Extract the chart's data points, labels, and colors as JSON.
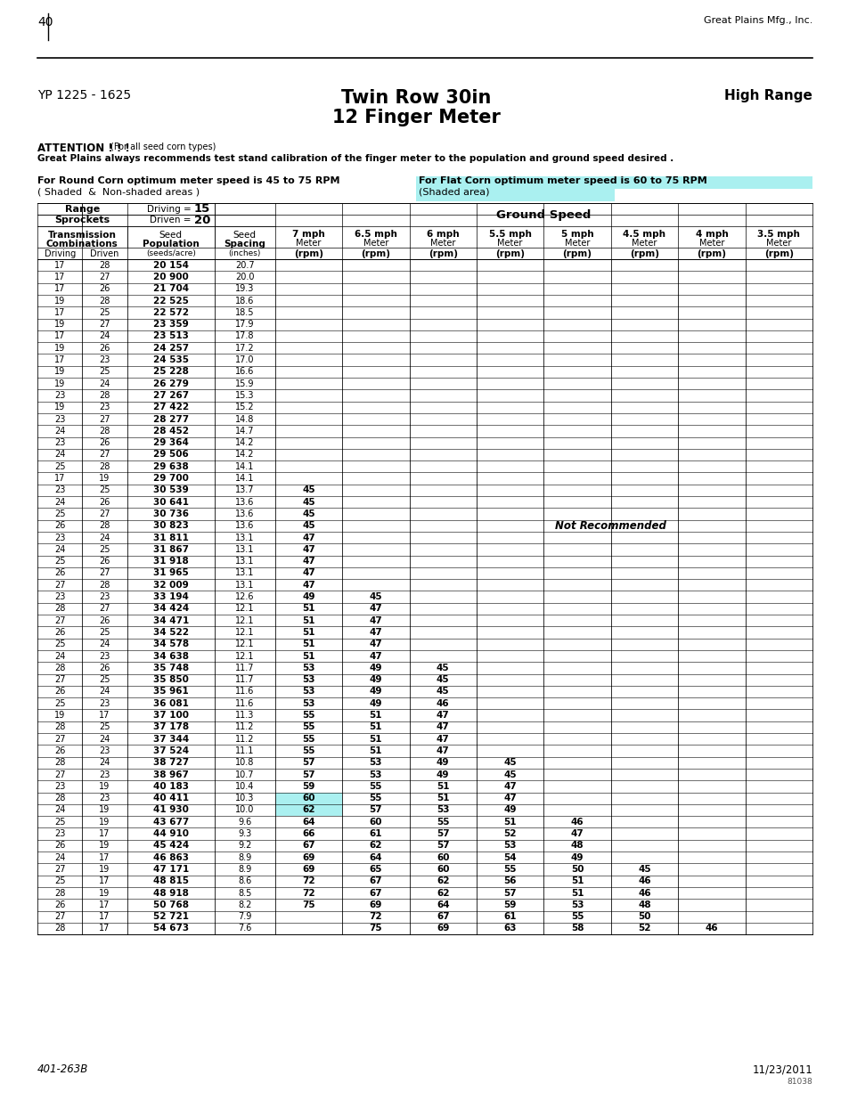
{
  "page_num": "40",
  "company": "Great Plains Mfg., Inc.",
  "model": "YP 1225 - 1625",
  "title_line1": "Twin Row 30in",
  "title_line2": "12 Finger Meter",
  "range_label": "High Range",
  "attention_bold": "ATTENTION ! ! !",
  "attention_small": "  (For all seed corn types)",
  "attention_body": "Great Plains always recommends test stand calibration of the finger meter to the population and ground speed desired .",
  "round_corn_text": "For Round Corn optimum meter speed is 45 to 75 RPM",
  "round_corn_sub": "( Shaded  &  Non-shaded areas )",
  "flat_corn_text": "For Flat Corn optimum meter speed is 60 to 75 RPM",
  "flat_corn_sub": "(Shaded area)",
  "flat_corn_bg": "#aaf0f0",
  "driving_val": "15",
  "driven_val": "20",
  "col_headers": [
    "7 mph",
    "6.5 mph",
    "6 mph",
    "5.5 mph",
    "5 mph",
    "4.5 mph",
    "4 mph",
    "3.5 mph"
  ],
  "not_recommended_text": "Not Recommended",
  "footer_left": "401-263B",
  "footer_right": "11/23/2011",
  "footer_small": "81038",
  "table_data": [
    [
      17,
      28,
      "20 154",
      "20.7",
      "",
      "",
      "",
      "",
      "",
      "",
      "",
      ""
    ],
    [
      17,
      27,
      "20 900",
      "20.0",
      "",
      "",
      "",
      "",
      "",
      "",
      "",
      ""
    ],
    [
      17,
      26,
      "21 704",
      "19.3",
      "",
      "",
      "",
      "",
      "",
      "",
      "",
      ""
    ],
    [
      19,
      28,
      "22 525",
      "18.6",
      "",
      "",
      "",
      "",
      "",
      "",
      "",
      ""
    ],
    [
      17,
      25,
      "22 572",
      "18.5",
      "",
      "",
      "",
      "",
      "",
      "",
      "",
      ""
    ],
    [
      19,
      27,
      "23 359",
      "17.9",
      "",
      "",
      "",
      "",
      "",
      "",
      "",
      ""
    ],
    [
      17,
      24,
      "23 513",
      "17.8",
      "",
      "",
      "",
      "",
      "",
      "",
      "",
      ""
    ],
    [
      19,
      26,
      "24 257",
      "17.2",
      "",
      "",
      "",
      "",
      "",
      "",
      "",
      ""
    ],
    [
      17,
      23,
      "24 535",
      "17.0",
      "",
      "",
      "",
      "",
      "",
      "",
      "",
      ""
    ],
    [
      19,
      25,
      "25 228",
      "16.6",
      "",
      "",
      "",
      "",
      "",
      "",
      "",
      ""
    ],
    [
      19,
      24,
      "26 279",
      "15.9",
      "",
      "",
      "",
      "",
      "",
      "",
      "",
      ""
    ],
    [
      23,
      28,
      "27 267",
      "15.3",
      "",
      "",
      "",
      "",
      "",
      "",
      "",
      ""
    ],
    [
      19,
      23,
      "27 422",
      "15.2",
      "",
      "",
      "",
      "",
      "",
      "",
      "",
      ""
    ],
    [
      23,
      27,
      "28 277",
      "14.8",
      "",
      "",
      "",
      "",
      "",
      "",
      "",
      ""
    ],
    [
      24,
      28,
      "28 452",
      "14.7",
      "",
      "",
      "",
      "",
      "",
      "",
      "",
      ""
    ],
    [
      23,
      26,
      "29 364",
      "14.2",
      "",
      "",
      "",
      "",
      "",
      "",
      "",
      ""
    ],
    [
      24,
      27,
      "29 506",
      "14.2",
      "",
      "",
      "",
      "",
      "",
      "",
      "",
      ""
    ],
    [
      25,
      28,
      "29 638",
      "14.1",
      "",
      "",
      "",
      "",
      "",
      "",
      "",
      ""
    ],
    [
      17,
      19,
      "29 700",
      "14.1",
      "",
      "",
      "",
      "",
      "",
      "",
      "",
      ""
    ],
    [
      23,
      25,
      "30 539",
      "13.7",
      "45",
      "",
      "",
      "",
      "",
      "",
      "",
      ""
    ],
    [
      24,
      26,
      "30 641",
      "13.6",
      "45",
      "",
      "",
      "",
      "",
      "",
      "",
      ""
    ],
    [
      25,
      27,
      "30 736",
      "13.6",
      "45",
      "",
      "",
      "",
      "",
      "",
      "",
      ""
    ],
    [
      26,
      28,
      "30 823",
      "13.6",
      "45",
      "",
      "",
      "",
      "",
      "",
      "",
      ""
    ],
    [
      23,
      24,
      "31 811",
      "13.1",
      "47",
      "",
      "",
      "",
      "",
      "",
      "",
      ""
    ],
    [
      24,
      25,
      "31 867",
      "13.1",
      "47",
      "",
      "",
      "",
      "",
      "",
      "",
      ""
    ],
    [
      25,
      26,
      "31 918",
      "13.1",
      "47",
      "",
      "",
      "",
      "",
      "",
      "",
      ""
    ],
    [
      26,
      27,
      "31 965",
      "13.1",
      "47",
      "",
      "",
      "",
      "",
      "",
      "",
      ""
    ],
    [
      27,
      28,
      "32 009",
      "13.1",
      "47",
      "",
      "",
      "",
      "",
      "",
      "",
      ""
    ],
    [
      23,
      23,
      "33 194",
      "12.6",
      "49",
      "45",
      "",
      "",
      "",
      "",
      "",
      ""
    ],
    [
      28,
      27,
      "34 424",
      "12.1",
      "51",
      "47",
      "",
      "",
      "",
      "",
      "",
      ""
    ],
    [
      27,
      26,
      "34 471",
      "12.1",
      "51",
      "47",
      "",
      "",
      "",
      "",
      "",
      ""
    ],
    [
      26,
      25,
      "34 522",
      "12.1",
      "51",
      "47",
      "",
      "",
      "",
      "",
      "",
      ""
    ],
    [
      25,
      24,
      "34 578",
      "12.1",
      "51",
      "47",
      "",
      "",
      "",
      "",
      "",
      ""
    ],
    [
      24,
      23,
      "34 638",
      "12.1",
      "51",
      "47",
      "",
      "",
      "",
      "",
      "",
      ""
    ],
    [
      28,
      26,
      "35 748",
      "11.7",
      "53",
      "49",
      "45",
      "",
      "",
      "",
      "",
      ""
    ],
    [
      27,
      25,
      "35 850",
      "11.7",
      "53",
      "49",
      "45",
      "",
      "",
      "",
      "",
      ""
    ],
    [
      26,
      24,
      "35 961",
      "11.6",
      "53",
      "49",
      "45",
      "",
      "",
      "",
      "",
      ""
    ],
    [
      25,
      23,
      "36 081",
      "11.6",
      "53",
      "49",
      "46",
      "",
      "",
      "",
      "",
      ""
    ],
    [
      19,
      17,
      "37 100",
      "11.3",
      "55",
      "51",
      "47",
      "",
      "",
      "",
      "",
      ""
    ],
    [
      28,
      25,
      "37 178",
      "11.2",
      "55",
      "51",
      "47",
      "",
      "",
      "",
      "",
      ""
    ],
    [
      27,
      24,
      "37 344",
      "11.2",
      "55",
      "51",
      "47",
      "",
      "",
      "",
      "",
      ""
    ],
    [
      26,
      23,
      "37 524",
      "11.1",
      "55",
      "51",
      "47",
      "",
      "",
      "",
      "",
      ""
    ],
    [
      28,
      24,
      "38 727",
      "10.8",
      "57",
      "53",
      "49",
      "45",
      "",
      "",
      "",
      ""
    ],
    [
      27,
      23,
      "38 967",
      "10.7",
      "57",
      "53",
      "49",
      "45",
      "",
      "",
      "",
      ""
    ],
    [
      23,
      19,
      "40 183",
      "10.4",
      "59",
      "55",
      "51",
      "47",
      "",
      "",
      "",
      ""
    ],
    [
      28,
      23,
      "40 411",
      "10.3",
      "60",
      "55",
      "51",
      "47",
      "",
      "",
      "",
      ""
    ],
    [
      24,
      19,
      "41 930",
      "10.0",
      "62",
      "57",
      "53",
      "49",
      "",
      "",
      "",
      ""
    ],
    [
      25,
      19,
      "43 677",
      "9.6",
      "64",
      "60",
      "55",
      "51",
      "46",
      "",
      "",
      ""
    ],
    [
      23,
      17,
      "44 910",
      "9.3",
      "66",
      "61",
      "57",
      "52",
      "47",
      "",
      "",
      ""
    ],
    [
      26,
      19,
      "45 424",
      "9.2",
      "67",
      "62",
      "57",
      "53",
      "48",
      "",
      "",
      ""
    ],
    [
      24,
      17,
      "46 863",
      "8.9",
      "69",
      "64",
      "60",
      "54",
      "49",
      "",
      "",
      ""
    ],
    [
      27,
      19,
      "47 171",
      "8.9",
      "69",
      "65",
      "60",
      "55",
      "50",
      "45",
      "",
      ""
    ],
    [
      25,
      17,
      "48 815",
      "8.6",
      "72",
      "67",
      "62",
      "56",
      "51",
      "46",
      "",
      ""
    ],
    [
      28,
      19,
      "48 918",
      "8.5",
      "72",
      "67",
      "62",
      "57",
      "51",
      "46",
      "",
      ""
    ],
    [
      26,
      17,
      "50 768",
      "8.2",
      "75",
      "69",
      "64",
      "59",
      "53",
      "48",
      "",
      ""
    ],
    [
      27,
      17,
      "52 721",
      "7.9",
      "",
      "72",
      "67",
      "61",
      "55",
      "50",
      "",
      ""
    ],
    [
      28,
      17,
      "54 673",
      "7.6",
      "",
      "75",
      "69",
      "63",
      "58",
      "52",
      "46",
      ""
    ]
  ],
  "cyan_7mph_vals": [
    "60",
    "62"
  ]
}
